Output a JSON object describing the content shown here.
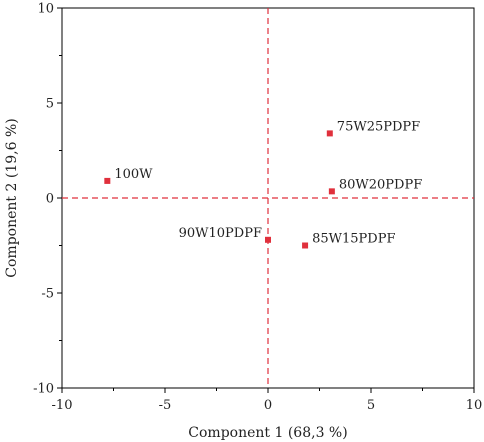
{
  "chart_data": {
    "type": "scatter",
    "title": "",
    "xlabel": "Component 1 (68,3 %)",
    "ylabel": "Component 2 (19,6 %)",
    "xlim": [
      -10,
      10
    ],
    "ylim": [
      -10,
      10
    ],
    "xticks": [
      -10,
      -5,
      0,
      5,
      10
    ],
    "yticks": [
      -10,
      -5,
      0,
      5,
      10
    ],
    "x_tick_labels": [
      "-10",
      "-5",
      "0",
      "5",
      "10"
    ],
    "y_tick_labels": [
      "-10",
      "-5",
      "0",
      "5",
      "10"
    ],
    "grid": false,
    "reference_lines": {
      "x": 0,
      "y": 0,
      "style": "dashed",
      "color": "#e0303c"
    },
    "marker_color": "#e0303c",
    "points": [
      {
        "label": "100W",
        "x": -7.8,
        "y": 0.9,
        "label_side": "right"
      },
      {
        "label": "75W25PDPF",
        "x": 3.0,
        "y": 3.4,
        "label_side": "right"
      },
      {
        "label": "80W20PDPF",
        "x": 3.1,
        "y": 0.35,
        "label_side": "right"
      },
      {
        "label": "90W10PDPF",
        "x": 0.0,
        "y": -2.2,
        "label_side": "left"
      },
      {
        "label": "85W15PDPF",
        "x": 1.8,
        "y": -2.5,
        "label_side": "right"
      }
    ]
  }
}
